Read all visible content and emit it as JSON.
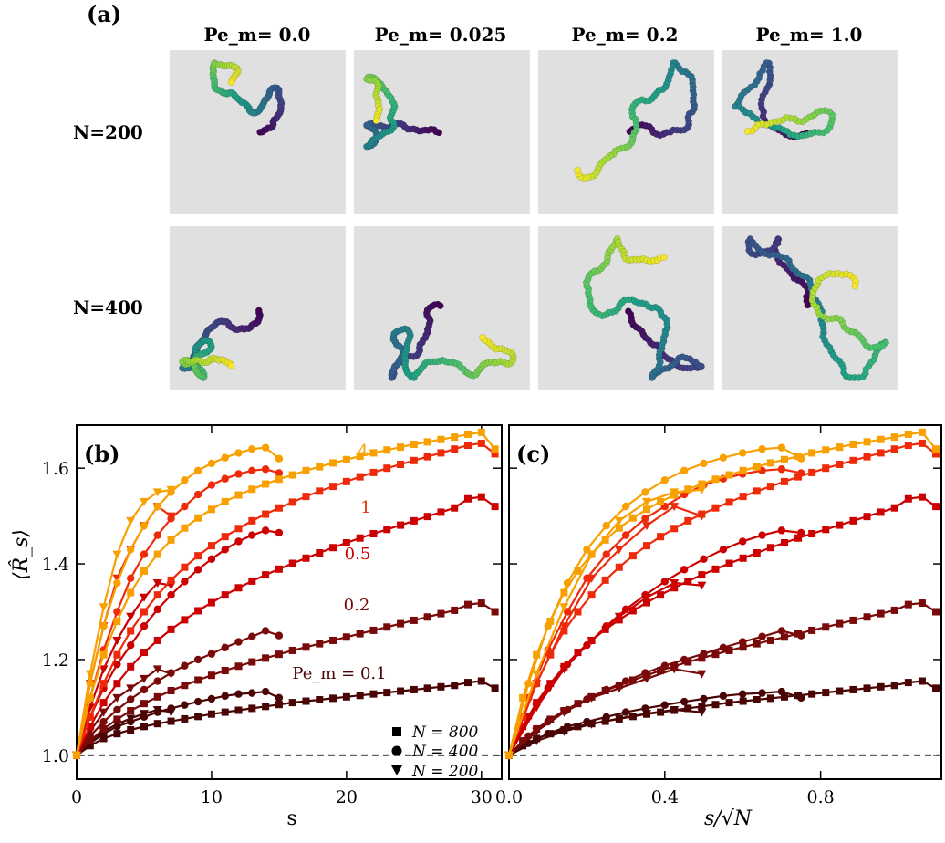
{
  "panel_a": {
    "label": "(a)",
    "column_headers": [
      "Pe_m= 0.0",
      "Pe_m= 0.025",
      "Pe_m= 0.2",
      "Pe_m= 1.0"
    ],
    "row_labels": [
      "N=200",
      "N=400"
    ]
  },
  "chart_data": [
    {
      "type": "line",
      "panel": "(b)",
      "xlabel": "s",
      "ylabel": "⟨R̂_s⟩",
      "xlim": [
        0,
        31.5
      ],
      "ylim": [
        0.95,
        1.69
      ],
      "xticks": [
        0,
        10,
        20,
        30
      ],
      "yticks": [
        1.0,
        1.2,
        1.4,
        1.6
      ],
      "reference_line": {
        "y": 1.0,
        "style": "dashed"
      },
      "pe_labels": [
        "4",
        "1",
        "0.5",
        "0.2",
        "Pe_m = 0.1"
      ],
      "legend": [
        "N = 800",
        "N = 400",
        "N = 200"
      ],
      "legend_position": "lower-right",
      "series": [
        {
          "name": "Pe_m = 0.1, N = 800",
          "color": "#4a0404",
          "marker": "square",
          "x": [
            0,
            1,
            2,
            3,
            4,
            5,
            6,
            7,
            8,
            9,
            10,
            11,
            12,
            13,
            14,
            15,
            16,
            17,
            18,
            19,
            20,
            21,
            22,
            23,
            24,
            25,
            26,
            27,
            28,
            29,
            30,
            31
          ],
          "y": [
            1.0,
            1.02,
            1.035,
            1.045,
            1.053,
            1.06,
            1.066,
            1.071,
            1.076,
            1.081,
            1.086,
            1.09,
            1.094,
            1.098,
            1.102,
            1.106,
            1.11,
            1.113,
            1.116,
            1.119,
            1.122,
            1.125,
            1.128,
            1.131,
            1.134,
            1.137,
            1.14,
            1.143,
            1.146,
            1.152,
            1.155,
            1.14
          ]
        },
        {
          "name": "Pe_m = 0.1, N = 400",
          "color": "#4a0404",
          "marker": "circle",
          "x": [
            0,
            1,
            2,
            3,
            4,
            5,
            6,
            7,
            8,
            9,
            10,
            11,
            12,
            13,
            14,
            15
          ],
          "y": [
            1.0,
            1.025,
            1.045,
            1.06,
            1.07,
            1.08,
            1.09,
            1.098,
            1.105,
            1.112,
            1.118,
            1.124,
            1.128,
            1.13,
            1.133,
            1.12
          ]
        },
        {
          "name": "Pe_m = 0.1, N = 200",
          "color": "#4a0404",
          "marker": "triangle",
          "x": [
            0,
            1,
            2,
            3,
            4,
            5,
            6,
            7
          ],
          "y": [
            1.0,
            1.03,
            1.05,
            1.065,
            1.077,
            1.087,
            1.095,
            1.09
          ]
        },
        {
          "name": "Pe_m = 0.2, N = 800",
          "color": "#7a0a0a",
          "marker": "square",
          "x": [
            0,
            1,
            2,
            3,
            4,
            5,
            6,
            7,
            8,
            9,
            10,
            11,
            12,
            13,
            14,
            15,
            16,
            17,
            18,
            19,
            20,
            21,
            22,
            23,
            24,
            25,
            26,
            27,
            28,
            29,
            30,
            31
          ],
          "y": [
            1.0,
            1.03,
            1.055,
            1.075,
            1.093,
            1.108,
            1.122,
            1.135,
            1.146,
            1.157,
            1.167,
            1.177,
            1.186,
            1.195,
            1.203,
            1.211,
            1.219,
            1.226,
            1.233,
            1.24,
            1.247,
            1.254,
            1.261,
            1.268,
            1.275,
            1.282,
            1.289,
            1.296,
            1.303,
            1.315,
            1.318,
            1.3
          ]
        },
        {
          "name": "Pe_m = 0.2, N = 400",
          "color": "#7a0a0a",
          "marker": "circle",
          "x": [
            0,
            1,
            2,
            3,
            4,
            5,
            6,
            7,
            8,
            9,
            10,
            11,
            12,
            13,
            14,
            15
          ],
          "y": [
            1.0,
            1.04,
            1.07,
            1.095,
            1.117,
            1.137,
            1.155,
            1.172,
            1.187,
            1.2,
            1.212,
            1.225,
            1.237,
            1.248,
            1.26,
            1.25
          ]
        },
        {
          "name": "Pe_m = 0.2, N = 200",
          "color": "#7a0a0a",
          "marker": "triangle",
          "x": [
            0,
            1,
            2,
            3,
            4,
            5,
            6,
            7
          ],
          "y": [
            1.0,
            1.05,
            1.09,
            1.12,
            1.14,
            1.16,
            1.18,
            1.17
          ]
        },
        {
          "name": "Pe_m = 0.5, N = 800",
          "color": "#cc0000",
          "marker": "square",
          "x": [
            0,
            1,
            2,
            3,
            4,
            5,
            6,
            7,
            8,
            9,
            10,
            11,
            12,
            13,
            14,
            15,
            16,
            17,
            18,
            19,
            20,
            21,
            22,
            23,
            24,
            25,
            26,
            27,
            28,
            29,
            30,
            31
          ],
          "y": [
            1.0,
            1.06,
            1.11,
            1.15,
            1.185,
            1.215,
            1.24,
            1.263,
            1.283,
            1.302,
            1.319,
            1.335,
            1.35,
            1.364,
            1.377,
            1.389,
            1.401,
            1.412,
            1.423,
            1.434,
            1.444,
            1.454,
            1.463,
            1.472,
            1.481,
            1.49,
            1.499,
            1.508,
            1.517,
            1.536,
            1.54,
            1.52
          ]
        },
        {
          "name": "Pe_m = 0.5, N = 400",
          "color": "#cc0000",
          "marker": "circle",
          "x": [
            0,
            1,
            2,
            3,
            4,
            5,
            6,
            7,
            8,
            9,
            10,
            11,
            12,
            13,
            14,
            15
          ],
          "y": [
            1.0,
            1.08,
            1.14,
            1.19,
            1.23,
            1.27,
            1.305,
            1.335,
            1.363,
            1.388,
            1.41,
            1.43,
            1.447,
            1.46,
            1.47,
            1.465
          ]
        },
        {
          "name": "Pe_m = 0.5, N = 200",
          "color": "#cc0000",
          "marker": "triangle",
          "x": [
            0,
            1,
            2,
            3,
            4,
            5,
            6,
            7
          ],
          "y": [
            1.0,
            1.1,
            1.18,
            1.24,
            1.29,
            1.33,
            1.36,
            1.355
          ]
        },
        {
          "name": "Pe_m = 1, N = 800",
          "color": "#ee2a0a",
          "marker": "square",
          "x": [
            0,
            1,
            2,
            3,
            4,
            5,
            6,
            7,
            8,
            9,
            10,
            11,
            12,
            13,
            14,
            15,
            16,
            17,
            18,
            19,
            20,
            21,
            22,
            23,
            24,
            25,
            26,
            27,
            28,
            29,
            30,
            31
          ],
          "y": [
            1.0,
            1.08,
            1.15,
            1.21,
            1.26,
            1.3,
            1.335,
            1.366,
            1.393,
            1.417,
            1.438,
            1.457,
            1.474,
            1.49,
            1.504,
            1.517,
            1.529,
            1.541,
            1.552,
            1.562,
            1.572,
            1.582,
            1.591,
            1.6,
            1.608,
            1.616,
            1.624,
            1.632,
            1.64,
            1.648,
            1.652,
            1.63
          ]
        },
        {
          "name": "Pe_m = 1, N = 400",
          "color": "#ee2a0a",
          "marker": "circle",
          "x": [
            0,
            1,
            2,
            3,
            4,
            5,
            6,
            7,
            8,
            9,
            10,
            11,
            12,
            13,
            14,
            15
          ],
          "y": [
            1.0,
            1.12,
            1.22,
            1.3,
            1.37,
            1.42,
            1.46,
            1.495,
            1.52,
            1.545,
            1.565,
            1.578,
            1.588,
            1.595,
            1.598,
            1.59
          ]
        },
        {
          "name": "Pe_m = 1, N = 200",
          "color": "#ee2a0a",
          "marker": "triangle",
          "x": [
            0,
            1,
            2,
            3,
            4,
            5,
            6,
            7
          ],
          "y": [
            1.0,
            1.15,
            1.27,
            1.37,
            1.43,
            1.48,
            1.52,
            1.5
          ]
        },
        {
          "name": "Pe_m = 4, N = 800",
          "color": "#f7a000",
          "marker": "square",
          "x": [
            0,
            1,
            2,
            3,
            4,
            5,
            6,
            7,
            8,
            9,
            10,
            11,
            12,
            13,
            14,
            15,
            16,
            17,
            18,
            19,
            20,
            21,
            22,
            23,
            24,
            25,
            26,
            27,
            28,
            29,
            30,
            31
          ],
          "y": [
            1.0,
            1.12,
            1.21,
            1.28,
            1.34,
            1.385,
            1.42,
            1.45,
            1.475,
            1.496,
            1.514,
            1.53,
            1.544,
            1.556,
            1.567,
            1.577,
            1.586,
            1.595,
            1.603,
            1.611,
            1.618,
            1.625,
            1.632,
            1.638,
            1.644,
            1.65,
            1.655,
            1.66,
            1.665,
            1.671,
            1.675,
            1.64
          ]
        },
        {
          "name": "Pe_m = 4, N = 400",
          "color": "#f7a000",
          "marker": "circle",
          "x": [
            0,
            1,
            2,
            3,
            4,
            5,
            6,
            7,
            8,
            9,
            10,
            11,
            12,
            13,
            14,
            15
          ],
          "y": [
            1.0,
            1.15,
            1.27,
            1.36,
            1.43,
            1.48,
            1.52,
            1.55,
            1.575,
            1.595,
            1.61,
            1.622,
            1.632,
            1.64,
            1.643,
            1.62
          ]
        },
        {
          "name": "Pe_m = 4, N = 200",
          "color": "#f7a000",
          "marker": "triangle",
          "x": [
            0,
            1,
            2,
            3,
            4,
            5,
            6,
            7
          ],
          "y": [
            1.0,
            1.17,
            1.31,
            1.42,
            1.49,
            1.53,
            1.55,
            1.555
          ]
        }
      ]
    },
    {
      "type": "line",
      "panel": "(c)",
      "xlabel": "s/√N",
      "ylabel": "",
      "xlim": [
        0,
        1.11
      ],
      "ylim": [
        0.95,
        1.69
      ],
      "xticks": [
        0.0,
        0.4,
        0.8
      ],
      "reference_line": {
        "y": 1.0,
        "style": "dashed"
      },
      "note": "same series as panel (b) with s rescaled by √N"
    }
  ]
}
